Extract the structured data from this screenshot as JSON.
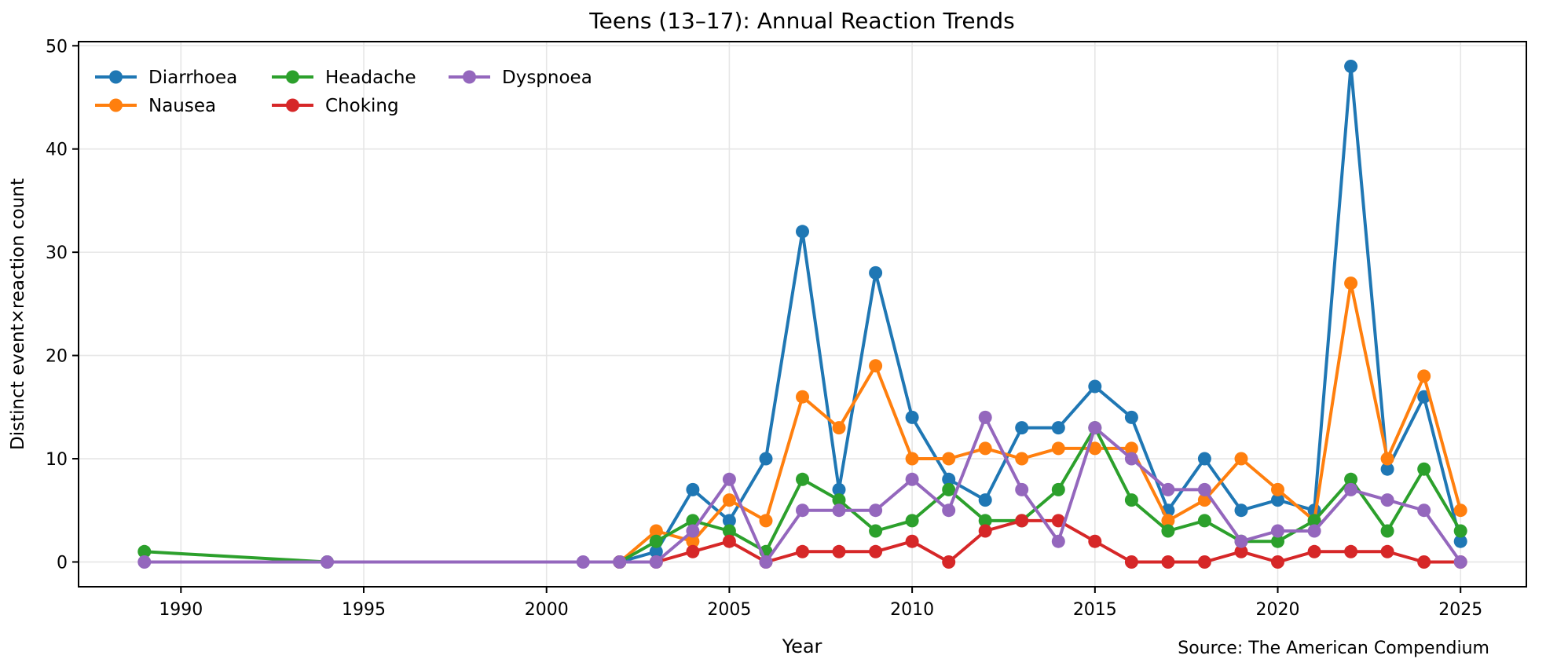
{
  "title": "Teens (13–17): Annual Reaction Trends",
  "source_note": "Source: The American Compendium",
  "source_color": "#6d7f96",
  "x_axis": {
    "label": "Year",
    "ticks": [
      1990,
      1995,
      2000,
      2005,
      2010,
      2015,
      2020,
      2025
    ]
  },
  "y_axis": {
    "label": "Distinct event×reaction count",
    "ticks": [
      0,
      10,
      20,
      30,
      40,
      50
    ]
  },
  "legend": {
    "position": "upper-left",
    "entries": [
      "Diarrhoea",
      "Nausea",
      "Headache",
      "Choking",
      "Dyspnoea"
    ]
  },
  "style": {
    "grid_color": "#e6e6e6",
    "spine_color": "#000000",
    "background": "#ffffff"
  },
  "chart_data": {
    "type": "line",
    "title": "Teens (13–17): Annual Reaction Trends",
    "xlabel": "Year",
    "ylabel": "Distinct event×reaction count",
    "xlim": [
      1987.2,
      2026.8
    ],
    "ylim": [
      -2.4,
      50.4
    ],
    "grid": true,
    "legend_position": "upper-left",
    "marker": "circle",
    "series": [
      {
        "name": "Diarrhoea",
        "color": "#1f77b4",
        "points": [
          [
            2002,
            0
          ],
          [
            2003,
            1
          ],
          [
            2004,
            7
          ],
          [
            2005,
            4
          ],
          [
            2006,
            10
          ],
          [
            2007,
            32
          ],
          [
            2008,
            7
          ],
          [
            2009,
            28
          ],
          [
            2010,
            14
          ],
          [
            2011,
            8
          ],
          [
            2012,
            6
          ],
          [
            2013,
            13
          ],
          [
            2014,
            13
          ],
          [
            2015,
            17
          ],
          [
            2016,
            14
          ],
          [
            2017,
            5
          ],
          [
            2018,
            10
          ],
          [
            2019,
            5
          ],
          [
            2020,
            6
          ],
          [
            2021,
            5
          ],
          [
            2022,
            48
          ],
          [
            2023,
            9
          ],
          [
            2024,
            16
          ],
          [
            2025,
            2
          ]
        ]
      },
      {
        "name": "Nausea",
        "color": "#ff7f0e",
        "points": [
          [
            2002,
            0
          ],
          [
            2003,
            3
          ],
          [
            2004,
            2
          ],
          [
            2005,
            6
          ],
          [
            2006,
            4
          ],
          [
            2007,
            16
          ],
          [
            2008,
            13
          ],
          [
            2009,
            19
          ],
          [
            2010,
            10
          ],
          [
            2011,
            10
          ],
          [
            2012,
            11
          ],
          [
            2013,
            10
          ],
          [
            2014,
            11
          ],
          [
            2015,
            11
          ],
          [
            2016,
            11
          ],
          [
            2017,
            4
          ],
          [
            2018,
            6
          ],
          [
            2019,
            10
          ],
          [
            2020,
            7
          ],
          [
            2021,
            4
          ],
          [
            2022,
            27
          ],
          [
            2023,
            10
          ],
          [
            2024,
            18
          ],
          [
            2025,
            5
          ]
        ]
      },
      {
        "name": "Headache",
        "color": "#2ca02c",
        "points": [
          [
            1989,
            1
          ],
          [
            1994,
            0
          ],
          [
            2002,
            0
          ],
          [
            2003,
            2
          ],
          [
            2004,
            4
          ],
          [
            2005,
            3
          ],
          [
            2006,
            1
          ],
          [
            2007,
            8
          ],
          [
            2008,
            6
          ],
          [
            2009,
            3
          ],
          [
            2010,
            4
          ],
          [
            2011,
            7
          ],
          [
            2012,
            4
          ],
          [
            2013,
            4
          ],
          [
            2014,
            7
          ],
          [
            2015,
            13
          ],
          [
            2016,
            6
          ],
          [
            2017,
            3
          ],
          [
            2018,
            4
          ],
          [
            2019,
            2
          ],
          [
            2020,
            2
          ],
          [
            2021,
            4
          ],
          [
            2022,
            8
          ],
          [
            2023,
            3
          ],
          [
            2024,
            9
          ],
          [
            2025,
            3
          ]
        ]
      },
      {
        "name": "Choking",
        "color": "#d62728",
        "points": [
          [
            2002,
            0
          ],
          [
            2003,
            0
          ],
          [
            2004,
            1
          ],
          [
            2005,
            2
          ],
          [
            2006,
            0
          ],
          [
            2007,
            1
          ],
          [
            2008,
            1
          ],
          [
            2009,
            1
          ],
          [
            2010,
            2
          ],
          [
            2011,
            0
          ],
          [
            2012,
            3
          ],
          [
            2013,
            4
          ],
          [
            2014,
            4
          ],
          [
            2015,
            2
          ],
          [
            2016,
            0
          ],
          [
            2017,
            0
          ],
          [
            2018,
            0
          ],
          [
            2019,
            1
          ],
          [
            2020,
            0
          ],
          [
            2021,
            1
          ],
          [
            2022,
            1
          ],
          [
            2023,
            1
          ],
          [
            2024,
            0
          ],
          [
            2025,
            0
          ]
        ]
      },
      {
        "name": "Dyspnoea",
        "color": "#9467bd",
        "points": [
          [
            1989,
            0
          ],
          [
            1994,
            0
          ],
          [
            2001,
            0
          ],
          [
            2002,
            0
          ],
          [
            2003,
            0
          ],
          [
            2004,
            3
          ],
          [
            2005,
            8
          ],
          [
            2006,
            0
          ],
          [
            2007,
            5
          ],
          [
            2008,
            5
          ],
          [
            2009,
            5
          ],
          [
            2010,
            8
          ],
          [
            2011,
            5
          ],
          [
            2012,
            14
          ],
          [
            2013,
            7
          ],
          [
            2014,
            2
          ],
          [
            2015,
            13
          ],
          [
            2016,
            10
          ],
          [
            2017,
            7
          ],
          [
            2018,
            7
          ],
          [
            2019,
            2
          ],
          [
            2020,
            3
          ],
          [
            2021,
            3
          ],
          [
            2022,
            7
          ],
          [
            2023,
            6
          ],
          [
            2024,
            5
          ],
          [
            2025,
            0
          ]
        ]
      }
    ]
  }
}
